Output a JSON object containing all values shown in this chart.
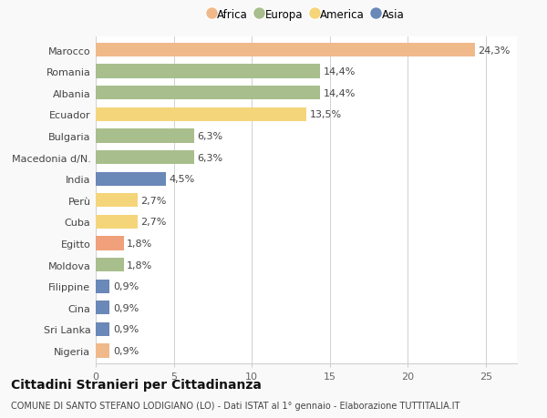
{
  "categories": [
    "Marocco",
    "Romania",
    "Albania",
    "Ecuador",
    "Bulgaria",
    "Macedonia d/N.",
    "India",
    "Perù",
    "Cuba",
    "Egitto",
    "Moldova",
    "Filippine",
    "Cina",
    "Sri Lanka",
    "Nigeria"
  ],
  "values": [
    24.3,
    14.4,
    14.4,
    13.5,
    6.3,
    6.3,
    4.5,
    2.7,
    2.7,
    1.8,
    1.8,
    0.9,
    0.9,
    0.9,
    0.9
  ],
  "labels": [
    "24,3%",
    "14,4%",
    "14,4%",
    "13,5%",
    "6,3%",
    "6,3%",
    "4,5%",
    "2,7%",
    "2,7%",
    "1,8%",
    "1,8%",
    "0,9%",
    "0,9%",
    "0,9%",
    "0,9%"
  ],
  "colors": [
    "#F0B98A",
    "#A8BE8C",
    "#A8BE8C",
    "#F5D57A",
    "#A8BE8C",
    "#A8BE8C",
    "#6A88B8",
    "#F5D57A",
    "#F5D57A",
    "#F0A07A",
    "#A8BE8C",
    "#6A88B8",
    "#6A88B8",
    "#6A88B8",
    "#F0B98A"
  ],
  "legend_labels": [
    "Africa",
    "Europa",
    "America",
    "Asia"
  ],
  "legend_colors": [
    "#F0B98A",
    "#A8BE8C",
    "#F5D57A",
    "#6A88B8"
  ],
  "title": "Cittadini Stranieri per Cittadinanza",
  "subtitle": "COMUNE DI SANTO STEFANO LODIGIANO (LO) - Dati ISTAT al 1° gennaio - Elaborazione TUTTITALIA.IT",
  "xlim": [
    0,
    27
  ],
  "xticks": [
    0,
    5,
    10,
    15,
    20,
    25
  ],
  "background_color": "#f9f9f9",
  "bar_background": "#ffffff",
  "grid_color": "#d0d0d0",
  "label_fontsize": 8,
  "tick_fontsize": 8,
  "title_fontsize": 10,
  "subtitle_fontsize": 7
}
